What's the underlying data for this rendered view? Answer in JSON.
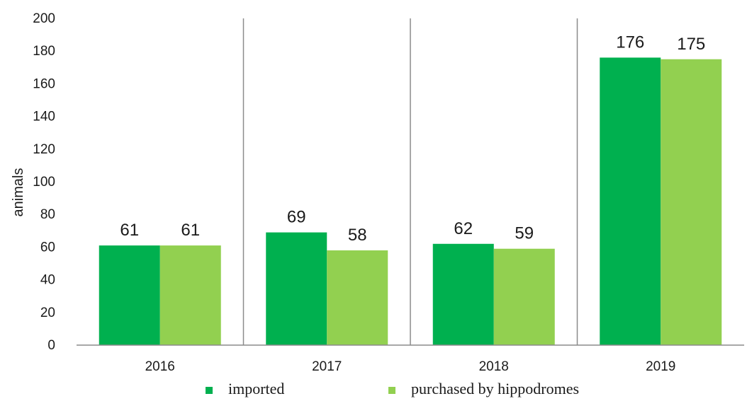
{
  "chart_data": {
    "type": "bar",
    "title": "",
    "xlabel": "",
    "ylabel": "animals",
    "ylim": [
      0,
      200
    ],
    "yticks": [
      0,
      20,
      40,
      60,
      80,
      100,
      120,
      140,
      160,
      180,
      200
    ],
    "categories": [
      "2016",
      "2017",
      "2018",
      "2019"
    ],
    "series": [
      {
        "name": "imported",
        "values": [
          61,
          69,
          62,
          176
        ],
        "color": "#00b04f"
      },
      {
        "name": "purchased by hippodromes",
        "values": [
          61,
          58,
          59,
          175
        ],
        "color": "#92d050"
      }
    ],
    "grid": false,
    "category_separators": true,
    "data_labels": true,
    "legend": "bottom-center"
  }
}
